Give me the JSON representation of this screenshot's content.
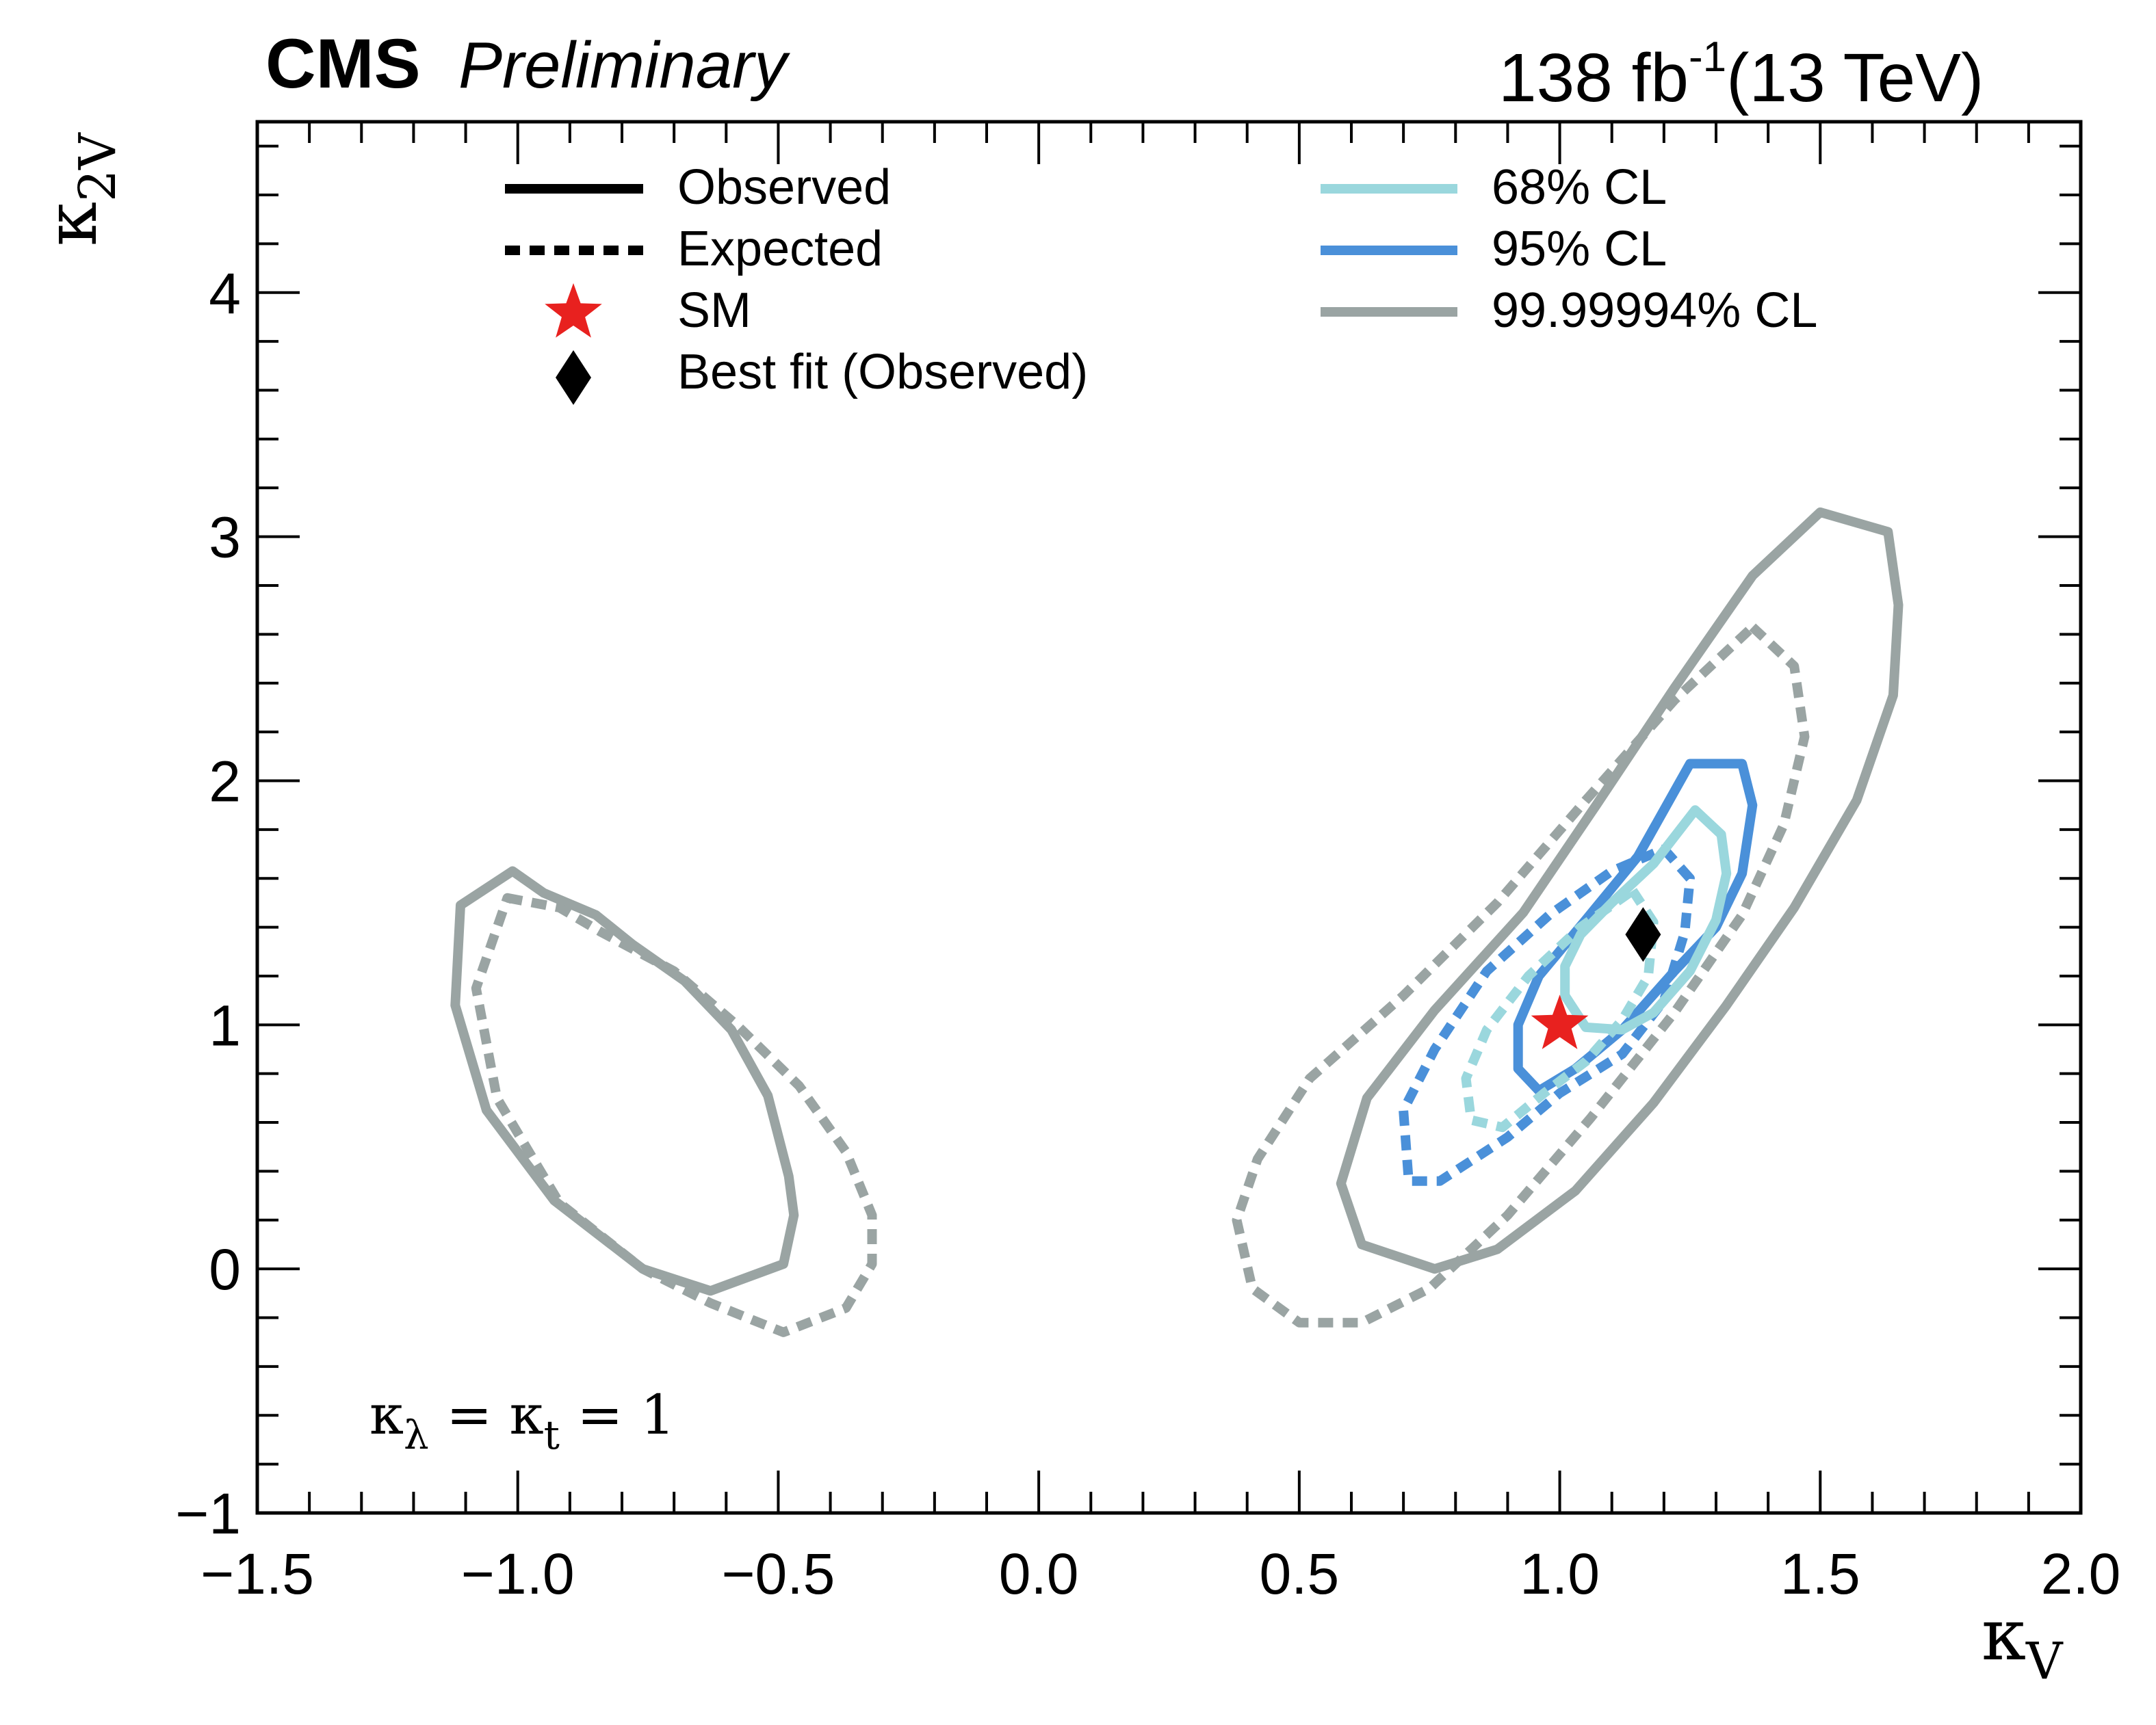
{
  "header": {
    "experiment": "CMS",
    "status": "Preliminary",
    "luminosity": "138 fb",
    "lumi_exponent": "-1",
    "energy": "(13 TeV)"
  },
  "annotation": {
    "k1": "κ",
    "sub1": "λ",
    "eq1": " = ",
    "k2": "κ",
    "sub2": "t",
    "eq2": " = 1"
  },
  "chart_data": {
    "type": "contour",
    "xlabel": {
      "symbol": "κ",
      "subscript": "V"
    },
    "ylabel": {
      "symbol": "κ",
      "subscript": "2V"
    },
    "xlim": [
      -1.5,
      2.0
    ],
    "ylim": [
      -1.0,
      4.7
    ],
    "xticks": [
      -1.5,
      -1.0,
      -0.5,
      0.0,
      0.5,
      1.0,
      1.5,
      2.0
    ],
    "xtick_labels": [
      "−1.5",
      "−1.0",
      "−0.5",
      "0.0",
      "0.5",
      "1.0",
      "1.5",
      "2.0"
    ],
    "yticks": [
      -1,
      0,
      1,
      2,
      3,
      4
    ],
    "ytick_labels": [
      "−1",
      "0",
      "1",
      "2",
      "3",
      "4"
    ],
    "colors": {
      "cl68": "#9ad7dd",
      "cl95": "#4a90d9",
      "cl99": "#9aa4a3",
      "sm": "#e8211f",
      "bestfit": "#000000",
      "axes": "#000000"
    },
    "legend": {
      "observed": "Observed",
      "expected": "Expected",
      "sm": "SM",
      "bestfit": "Best fit (Observed)",
      "cl68": "68% CL",
      "cl95": "95% CL",
      "cl99": "99.99994% CL"
    },
    "sm_point": {
      "x": 1.0,
      "y": 1.0
    },
    "best_fit": {
      "x": 1.16,
      "y": 1.37
    },
    "contours": [
      {
        "name": "obs-99-left",
        "level": "cl99",
        "style": "observed",
        "points": [
          [
            -1.11,
            1.49
          ],
          [
            -1.01,
            1.63
          ],
          [
            -0.95,
            1.54
          ],
          [
            -0.85,
            1.45
          ],
          [
            -0.78,
            1.33
          ],
          [
            -0.68,
            1.18
          ],
          [
            -0.59,
            0.98
          ],
          [
            -0.52,
            0.71
          ],
          [
            -0.48,
            0.38
          ],
          [
            -0.47,
            0.22
          ],
          [
            -0.49,
            0.02
          ],
          [
            -0.63,
            -0.09
          ],
          [
            -0.76,
            0.0
          ],
          [
            -0.93,
            0.28
          ],
          [
            -1.06,
            0.65
          ],
          [
            -1.12,
            1.08
          ],
          [
            -1.11,
            1.49
          ]
        ]
      },
      {
        "name": "exp-99-left",
        "level": "cl99",
        "style": "expected",
        "points": [
          [
            -1.02,
            1.52
          ],
          [
            -0.92,
            1.48
          ],
          [
            -0.84,
            1.38
          ],
          [
            -0.7,
            1.22
          ],
          [
            -0.58,
            1.0
          ],
          [
            -0.46,
            0.75
          ],
          [
            -0.37,
            0.48
          ],
          [
            -0.32,
            0.22
          ],
          [
            -0.32,
            0.02
          ],
          [
            -0.37,
            -0.16
          ],
          [
            -0.49,
            -0.26
          ],
          [
            -0.63,
            -0.14
          ],
          [
            -0.76,
            0.0
          ],
          [
            -0.92,
            0.27
          ],
          [
            -1.04,
            0.7
          ],
          [
            -1.08,
            1.15
          ],
          [
            -1.02,
            1.52
          ]
        ]
      },
      {
        "name": "obs-99-right",
        "level": "cl99",
        "style": "observed",
        "points": [
          [
            1.5,
            3.1
          ],
          [
            1.63,
            3.02
          ],
          [
            1.65,
            2.72
          ],
          [
            1.64,
            2.35
          ],
          [
            1.57,
            1.92
          ],
          [
            1.45,
            1.48
          ],
          [
            1.32,
            1.08
          ],
          [
            1.18,
            0.68
          ],
          [
            1.03,
            0.32
          ],
          [
            0.88,
            0.08
          ],
          [
            0.76,
            0.0
          ],
          [
            0.62,
            0.1
          ],
          [
            0.58,
            0.35
          ],
          [
            0.63,
            0.7
          ],
          [
            0.76,
            1.06
          ],
          [
            0.93,
            1.46
          ],
          [
            1.07,
            1.9
          ],
          [
            1.22,
            2.38
          ],
          [
            1.37,
            2.84
          ],
          [
            1.5,
            3.1
          ]
        ]
      },
      {
        "name": "exp-99-right",
        "level": "cl99",
        "style": "expected",
        "points": [
          [
            1.37,
            2.63
          ],
          [
            1.45,
            2.47
          ],
          [
            1.47,
            2.18
          ],
          [
            1.43,
            1.82
          ],
          [
            1.35,
            1.45
          ],
          [
            1.22,
            1.05
          ],
          [
            1.06,
            0.62
          ],
          [
            0.9,
            0.22
          ],
          [
            0.75,
            -0.08
          ],
          [
            0.62,
            -0.22
          ],
          [
            0.5,
            -0.22
          ],
          [
            0.41,
            -0.08
          ],
          [
            0.38,
            0.2
          ],
          [
            0.42,
            0.45
          ],
          [
            0.52,
            0.78
          ],
          [
            0.7,
            1.12
          ],
          [
            0.88,
            1.5
          ],
          [
            1.05,
            1.92
          ],
          [
            1.22,
            2.33
          ],
          [
            1.37,
            2.63
          ]
        ]
      },
      {
        "name": "obs-95",
        "level": "cl95",
        "style": "observed",
        "points": [
          [
            1.25,
            2.07
          ],
          [
            1.35,
            2.07
          ],
          [
            1.37,
            1.9
          ],
          [
            1.35,
            1.62
          ],
          [
            1.3,
            1.4
          ],
          [
            1.22,
            1.22
          ],
          [
            1.12,
            0.98
          ],
          [
            1.03,
            0.82
          ],
          [
            0.96,
            0.73
          ],
          [
            0.92,
            0.82
          ],
          [
            0.92,
            1.0
          ],
          [
            0.96,
            1.2
          ],
          [
            1.05,
            1.43
          ],
          [
            1.15,
            1.69
          ],
          [
            1.25,
            2.07
          ]
        ]
      },
      {
        "name": "exp-95",
        "level": "cl95",
        "style": "expected",
        "points": [
          [
            1.2,
            1.72
          ],
          [
            1.25,
            1.6
          ],
          [
            1.24,
            1.38
          ],
          [
            1.2,
            1.1
          ],
          [
            1.12,
            0.88
          ],
          [
            1.0,
            0.72
          ],
          [
            0.9,
            0.54
          ],
          [
            0.77,
            0.36
          ],
          [
            0.71,
            0.36
          ],
          [
            0.7,
            0.65
          ],
          [
            0.76,
            0.9
          ],
          [
            0.86,
            1.22
          ],
          [
            0.98,
            1.45
          ],
          [
            1.1,
            1.63
          ],
          [
            1.2,
            1.72
          ]
        ]
      },
      {
        "name": "obs-68",
        "level": "cl68",
        "style": "observed",
        "points": [
          [
            1.26,
            1.88
          ],
          [
            1.31,
            1.78
          ],
          [
            1.32,
            1.62
          ],
          [
            1.3,
            1.43
          ],
          [
            1.25,
            1.22
          ],
          [
            1.18,
            1.05
          ],
          [
            1.12,
            0.98
          ],
          [
            1.05,
            0.99
          ],
          [
            1.01,
            1.12
          ],
          [
            1.01,
            1.24
          ],
          [
            1.04,
            1.37
          ],
          [
            1.1,
            1.5
          ],
          [
            1.18,
            1.66
          ],
          [
            1.26,
            1.88
          ]
        ]
      },
      {
        "name": "exp-68",
        "level": "cl68",
        "style": "expected",
        "points": [
          [
            1.14,
            1.55
          ],
          [
            1.18,
            1.42
          ],
          [
            1.17,
            1.2
          ],
          [
            1.12,
            1.02
          ],
          [
            1.05,
            0.85
          ],
          [
            0.97,
            0.72
          ],
          [
            0.89,
            0.58
          ],
          [
            0.83,
            0.61
          ],
          [
            0.82,
            0.78
          ],
          [
            0.86,
            0.98
          ],
          [
            0.94,
            1.2
          ],
          [
            1.04,
            1.4
          ],
          [
            1.14,
            1.55
          ]
        ]
      }
    ]
  }
}
